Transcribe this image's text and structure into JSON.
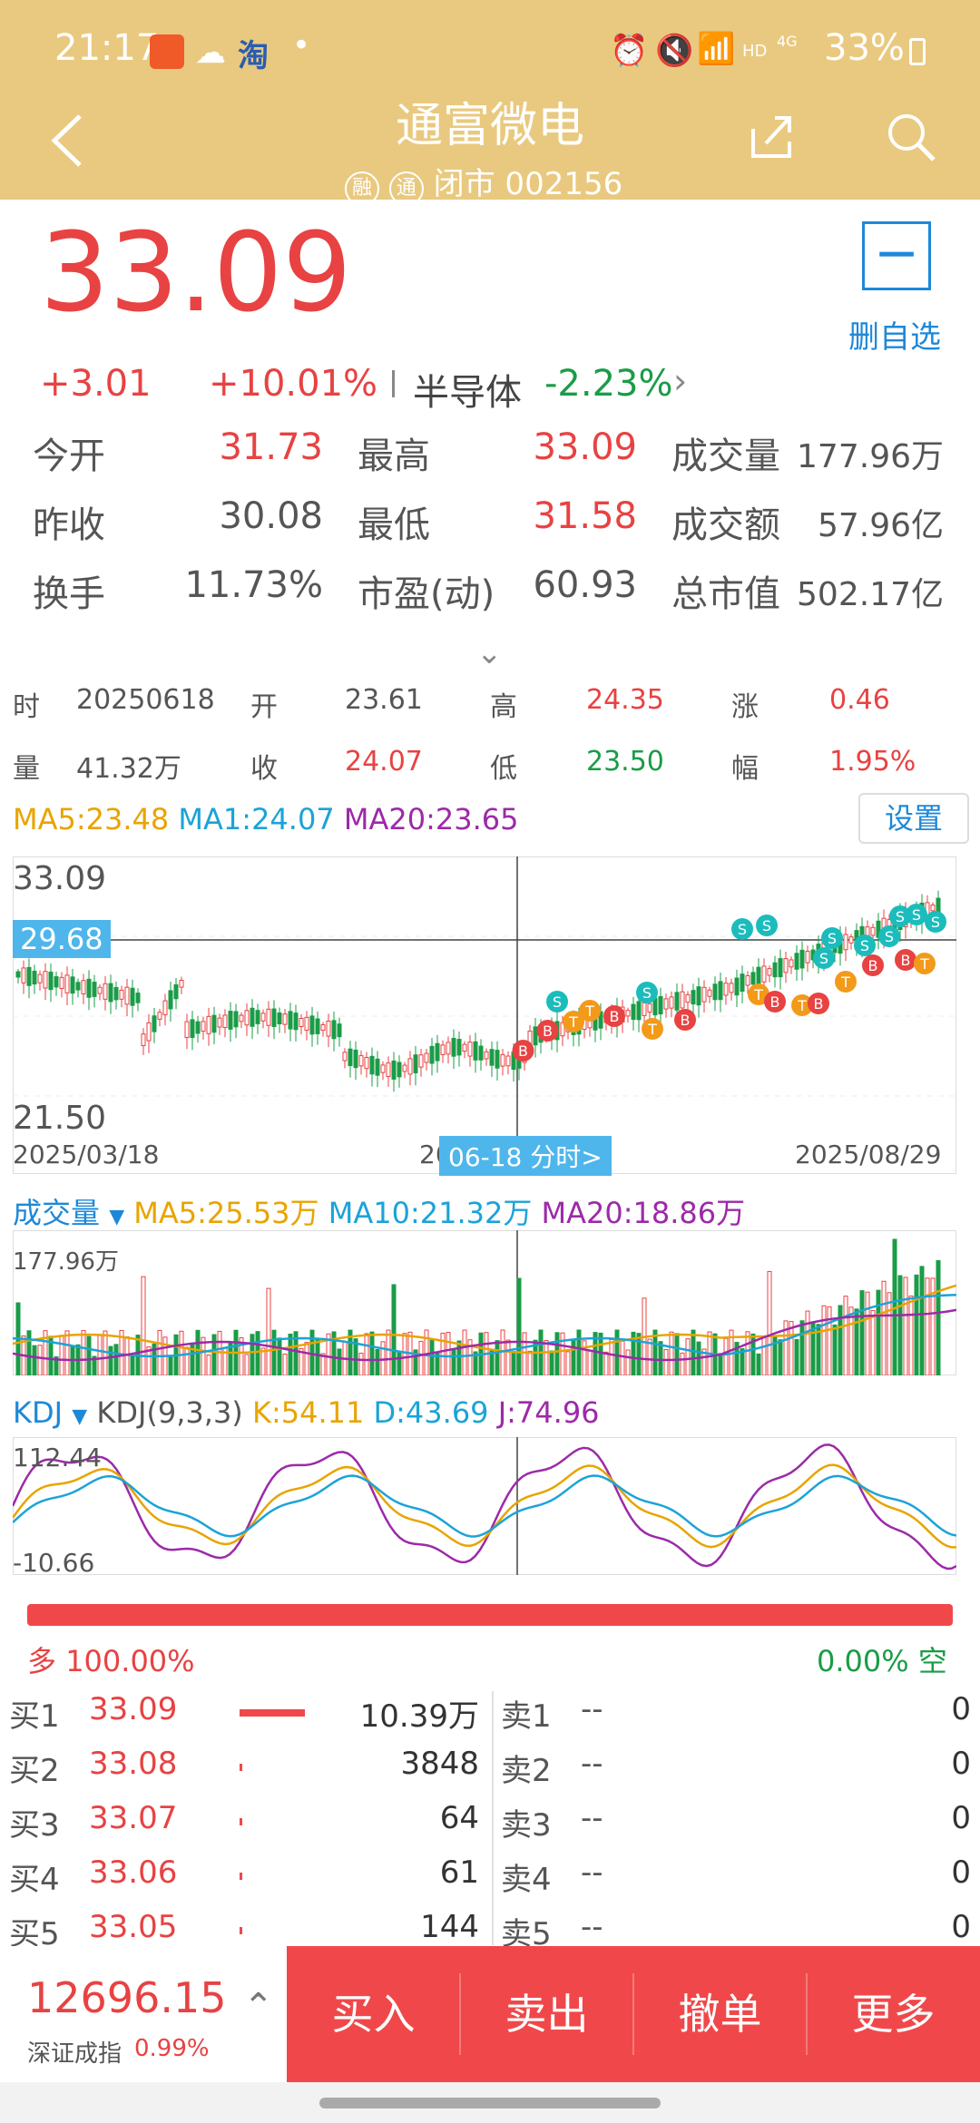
{
  "status_bar": {
    "time": "21:17",
    "battery": "33%",
    "net1": "HD",
    "net2": "4G"
  },
  "header": {
    "title": "通富微电",
    "tag1": "融",
    "tag2": "通",
    "subtitle": "闭市 002156"
  },
  "quote": {
    "price": "33.09",
    "change": "+3.01",
    "change_pct": "+10.01%",
    "sector": "半导体",
    "sector_pct": "-2.23%",
    "watch_label": "删自选",
    "stats": [
      [
        {
          "label": "今开",
          "value": "31.73",
          "cls": "red"
        },
        {
          "label": "最高",
          "value": "33.09",
          "cls": "red"
        },
        {
          "label": "成交量",
          "value": "177.96万",
          "cls": "grey"
        }
      ],
      [
        {
          "label": "昨收",
          "value": "30.08",
          "cls": "grey"
        },
        {
          "label": "最低",
          "value": "31.58",
          "cls": "red"
        },
        {
          "label": "成交额",
          "value": "57.96亿",
          "cls": "grey"
        }
      ],
      [
        {
          "label": "换手",
          "value": "11.73%",
          "cls": "grey"
        },
        {
          "label": "市盈(动)",
          "value": "60.93",
          "cls": "grey"
        },
        {
          "label": "总市值",
          "value": "502.17亿",
          "cls": "grey"
        }
      ]
    ]
  },
  "day_info": {
    "row1": [
      {
        "k": "时",
        "v": "20250618",
        "cls": "grey"
      },
      {
        "k": "开",
        "v": "23.61",
        "cls": "grey"
      },
      {
        "k": "高",
        "v": "24.35",
        "cls": "red"
      },
      {
        "k": "涨",
        "v": "0.46",
        "cls": "red"
      }
    ],
    "row2": [
      {
        "k": "量",
        "v": "41.32万",
        "cls": "grey"
      },
      {
        "k": "收",
        "v": "24.07",
        "cls": "red"
      },
      {
        "k": "低",
        "v": "23.50",
        "cls": "green"
      },
      {
        "k": "幅",
        "v": "1.95%",
        "cls": "red"
      }
    ]
  },
  "ma_line": {
    "ma5": "MA5:23.48",
    "ma10": "MA1:24.07",
    "ma20": "MA20:23.65",
    "settings": "设置"
  },
  "kline": {
    "high": "33.09",
    "low": "21.50",
    "cursor_price": "29.68",
    "date_start": "2025/03/18",
    "date_mid": "20",
    "date_end": "2025/08/29",
    "cursor_date": "06-18 分时>"
  },
  "volume": {
    "title": "成交量",
    "ma5": "MA5:25.53万",
    "ma10": "MA10:21.32万",
    "ma20": "MA20:18.86万",
    "max": "177.96万"
  },
  "kdj": {
    "title": "KDJ",
    "params": "KDJ(9,3,3)",
    "k": "K:54.11",
    "d": "D:43.69",
    "j": "J:74.96",
    "max": "112.44",
    "min": "-10.66"
  },
  "ratio": {
    "long_label": "多",
    "long_pct": "100.00%",
    "short_pct": "0.00%",
    "short_label": "空"
  },
  "order_book": {
    "bids": [
      {
        "label": "买1",
        "price": "33.09",
        "vol": "10.39万",
        "bar": 1.0
      },
      {
        "label": "买2",
        "price": "33.08",
        "vol": "3848",
        "bar": 0.04
      },
      {
        "label": "买3",
        "price": "33.07",
        "vol": "64",
        "bar": 0.01
      },
      {
        "label": "买4",
        "price": "33.06",
        "vol": "61",
        "bar": 0.01
      },
      {
        "label": "买5",
        "price": "33.05",
        "vol": "144",
        "bar": 0.01
      }
    ],
    "asks": [
      {
        "label": "卖1",
        "price": "--",
        "vol": "0"
      },
      {
        "label": "卖2",
        "price": "--",
        "vol": "0"
      },
      {
        "label": "卖3",
        "price": "--",
        "vol": "0"
      },
      {
        "label": "卖4",
        "price": "--",
        "vol": "0"
      },
      {
        "label": "卖5",
        "price": "--",
        "vol": "0"
      }
    ]
  },
  "bottom": {
    "index_value": "12696.15",
    "index_name": "深证成指",
    "index_pct": "0.99%",
    "buy": "买入",
    "sell": "卖出",
    "cancel": "撤单",
    "more": "更多"
  },
  "colors": {
    "accent_red": "#e84242",
    "header_gold": "#e9c97f",
    "green": "#1a9c47",
    "blue": "#1e88d8"
  }
}
